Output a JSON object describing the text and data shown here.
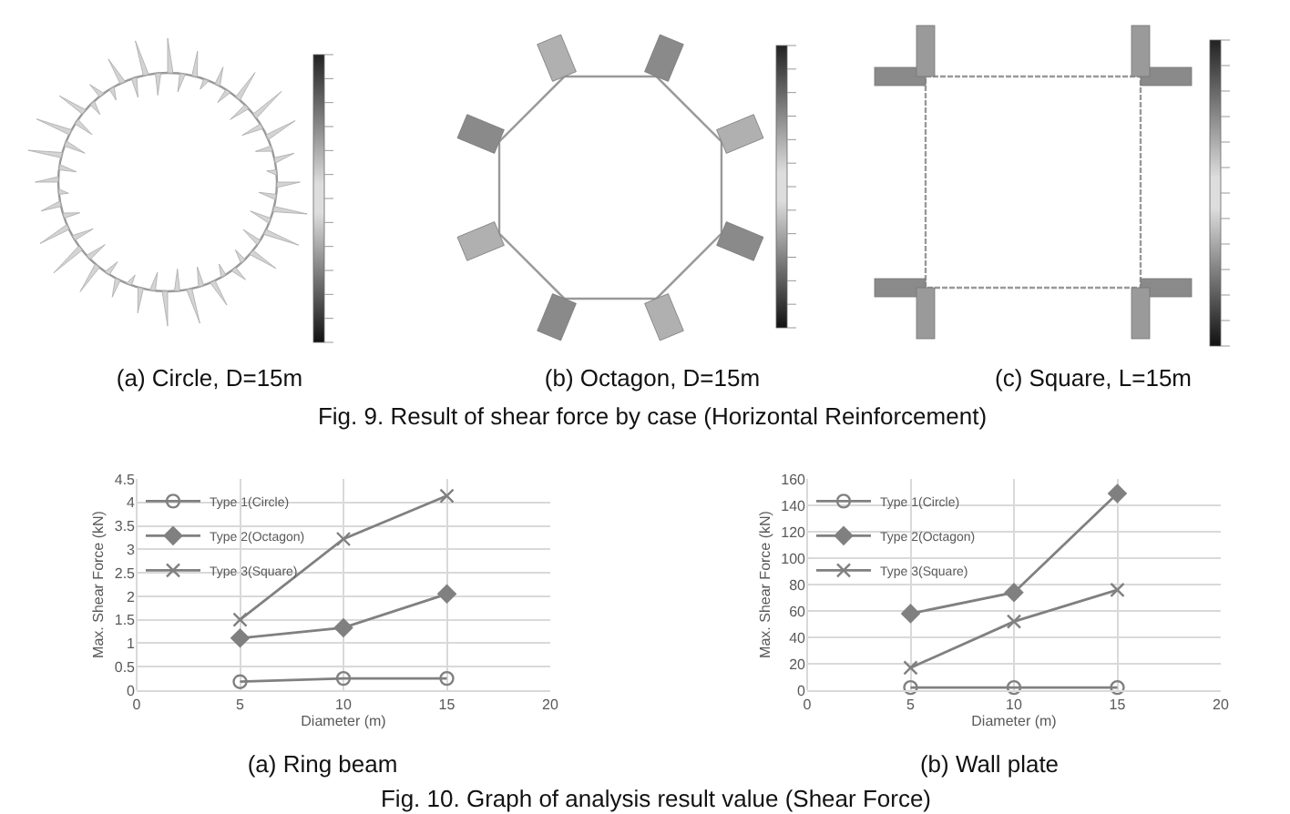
{
  "chart_data": [
    {
      "type": "other",
      "annotations": [
        "(a) Circle, D=15m",
        "(b) Octagon, D=15m",
        "(c) Square, L=15m",
        "Fig. 9. Result of shear force by case (Horizontal Reinforcement)"
      ]
    },
    {
      "type": "line",
      "title": "(a) Ring beam",
      "xlabel": "Diameter (m)",
      "ylabel": "Max. Shear Force (kN)",
      "x": [
        5,
        10,
        15
      ],
      "series": [
        {
          "name": "Type 1(Circle)",
          "color": "#808080",
          "marker": "circle",
          "values": [
            0.18,
            0.25,
            0.25
          ]
        },
        {
          "name": "Type 2(Octagon)",
          "color": "#808080",
          "marker": "diamond",
          "values": [
            1.11,
            1.33,
            2.05
          ]
        },
        {
          "name": "Type 3(Square)",
          "color": "#808080",
          "marker": "cross",
          "values": [
            1.5,
            3.22,
            4.14
          ]
        }
      ],
      "xlim": [
        0,
        20
      ],
      "xticks": [
        0,
        5,
        10,
        15,
        20
      ],
      "ylim": [
        0,
        4.5
      ],
      "yticks": [
        0,
        0.5,
        1,
        1.5,
        2,
        2.5,
        3,
        3.5,
        4,
        4.5
      ],
      "grid": true,
      "legend": "top left"
    },
    {
      "type": "line",
      "title": "(b) Wall plate",
      "xlabel": "Diameter (m)",
      "ylabel": "Max. Shear Force (kN)",
      "x": [
        5,
        10,
        15
      ],
      "series": [
        {
          "name": "Type 1(Circle)",
          "color": "#808080",
          "marker": "circle",
          "values": [
            2,
            2,
            2
          ]
        },
        {
          "name": "Type 2(Octagon)",
          "color": "#808080",
          "marker": "diamond",
          "values": [
            58,
            74,
            149
          ]
        },
        {
          "name": "Type 3(Square)",
          "color": "#808080",
          "marker": "cross",
          "values": [
            17,
            52,
            76
          ]
        }
      ],
      "xlim": [
        0,
        20
      ],
      "xticks": [
        0,
        5,
        10,
        15,
        20
      ],
      "ylim": [
        0,
        160
      ],
      "yticks": [
        0,
        20,
        40,
        60,
        80,
        100,
        120,
        140,
        160
      ],
      "grid": true,
      "legend": "top left"
    },
    {
      "type": "other",
      "annotations": [
        "Fig. 10. Graph of analysis result value (Shear Force)"
      ]
    }
  ]
}
